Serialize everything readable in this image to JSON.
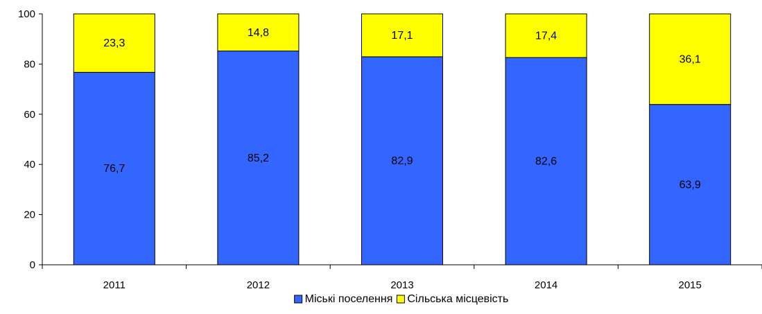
{
  "chart_data": {
    "type": "bar",
    "stacked": true,
    "categories": [
      "2011",
      "2012",
      "2013",
      "2014",
      "2015"
    ],
    "series": [
      {
        "name": "Міські поселення",
        "values": [
          76.7,
          85.2,
          82.9,
          82.6,
          63.9
        ],
        "labels": [
          "76,7",
          "85,2",
          "82,9",
          "82,6",
          "63,9"
        ],
        "color": "#3366FF"
      },
      {
        "name": "Сільська місцевість",
        "values": [
          23.3,
          14.8,
          17.1,
          17.4,
          36.1
        ],
        "labels": [
          "23,3",
          "14,8",
          "17,1",
          "17,4",
          "36,1"
        ],
        "color": "#FFFF00"
      }
    ],
    "ylim": [
      0,
      100
    ],
    "yticks": [
      0,
      20,
      40,
      60,
      80,
      100
    ],
    "grid": false,
    "legend": "bottom"
  }
}
